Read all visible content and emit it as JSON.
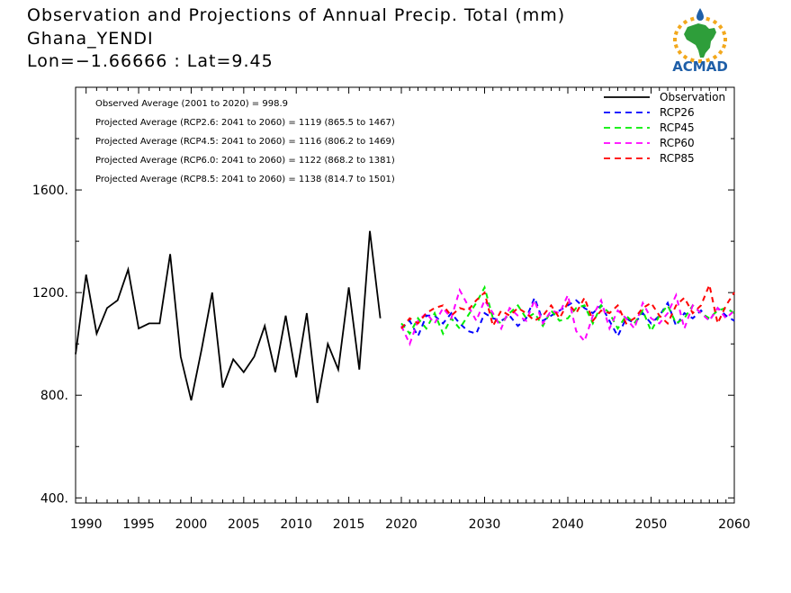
{
  "header": {
    "title": "Observation and Projections of Annual Precip. Total (mm)",
    "location": "Ghana_YENDI",
    "coords": "Lon=−1.66666 : Lat=9.45"
  },
  "logo": {
    "text": "ACMAD",
    "icon": "africa-map-sun-drop"
  },
  "colors": {
    "observation": "#000000",
    "rcp26": "#0000ff",
    "rcp45": "#00ee00",
    "rcp60": "#ff00ff",
    "rcp85": "#ff0000",
    "logo_text": "#1f5fa8",
    "logo_africa": "#2e9e3a",
    "logo_sun": "#f2a81d"
  },
  "chart_data": {
    "type": "line",
    "xlim": [
      1989,
      2060
    ],
    "ylim": [
      380,
      2000
    ],
    "x_ticks": [
      1990,
      1995,
      2000,
      2005,
      2010,
      2015,
      2020,
      2030,
      2040,
      2050,
      2060
    ],
    "y_ticks": [
      400,
      800,
      1200,
      1600
    ],
    "x_tick_labels": [
      "1990",
      "1995",
      "2000",
      "2005",
      "2010",
      "2015",
      "2020",
      "2030",
      "2040",
      "2050",
      "2060"
    ],
    "y_tick_labels": [
      "400.",
      "800.",
      "1200.",
      "1600."
    ],
    "annotations": [
      "Observed Average (2001 to 2020) = 998.9",
      "Projected Average (RCP2.6: 2041 to 2060) = 1119 (865.5 to 1467)",
      "Projected Average (RCP4.5: 2041 to 2060) = 1116 (806.2 to 1469)",
      "Projected Average (RCP6.0: 2041 to 2060) = 1122 (868.2 to 1381)",
      "Projected Average (RCP8.5: 2041 to 2060) = 1138 (814.7 to 1501)"
    ],
    "legend": [
      "Observation",
      "RCP26",
      "RCP45",
      "RCP60",
      "RCP85"
    ],
    "legend_position": "top-right",
    "series": [
      {
        "name": "Observation",
        "style": "solid",
        "x": [
          1989,
          1990,
          1991,
          1992,
          1993,
          1994,
          1995,
          1996,
          1997,
          1998,
          1999,
          2000,
          2001,
          2002,
          2003,
          2004,
          2005,
          2006,
          2007,
          2008,
          2009,
          2010,
          2011,
          2012,
          2013,
          2014,
          2015,
          2016,
          2017,
          2018,
          2019,
          2020
        ],
        "y": [
          960,
          1270,
          1040,
          1140,
          1170,
          1290,
          1060,
          1080,
          1080,
          1350,
          950,
          780,
          980,
          1200,
          830,
          940,
          890,
          950,
          1070,
          890,
          1110,
          870,
          1120,
          770,
          1000,
          900,
          1220,
          900,
          1440,
          1100,
          null,
          null
        ]
      },
      {
        "name": "RCP26",
        "style": "dashed",
        "x": [
          2020,
          2021,
          2022,
          2023,
          2024,
          2025,
          2026,
          2027,
          2028,
          2029,
          2030,
          2031,
          2032,
          2033,
          2034,
          2035,
          2036,
          2037,
          2038,
          2039,
          2040,
          2041,
          2042,
          2043,
          2044,
          2045,
          2046,
          2047,
          2048,
          2049,
          2050,
          2051,
          2052,
          2053,
          2054,
          2055,
          2056,
          2057,
          2058,
          2059,
          2060
        ],
        "y": [
          1060,
          1090,
          1030,
          1110,
          1110,
          1080,
          1120,
          1080,
          1050,
          1040,
          1120,
          1100,
          1090,
          1110,
          1070,
          1100,
          1180,
          1090,
          1110,
          1130,
          1150,
          1170,
          1140,
          1120,
          1150,
          1090,
          1030,
          1100,
          1080,
          1120,
          1080,
          1110,
          1160,
          1070,
          1120,
          1100,
          1130,
          1090,
          1140,
          1110,
          1090
        ]
      },
      {
        "name": "RCP45",
        "style": "dashed",
        "x": [
          2020,
          2021,
          2022,
          2023,
          2024,
          2025,
          2026,
          2027,
          2028,
          2029,
          2030,
          2031,
          2032,
          2033,
          2034,
          2035,
          2036,
          2037,
          2038,
          2039,
          2040,
          2041,
          2042,
          2043,
          2044,
          2045,
          2046,
          2047,
          2048,
          2049,
          2050,
          2051,
          2052,
          2053,
          2054,
          2055,
          2056,
          2057,
          2058,
          2059,
          2060
        ],
        "y": [
          1080,
          1040,
          1100,
          1060,
          1120,
          1040,
          1100,
          1060,
          1110,
          1160,
          1220,
          1100,
          1080,
          1120,
          1150,
          1100,
          1120,
          1070,
          1130,
          1090,
          1100,
          1140,
          1150,
          1080,
          1150,
          1120,
          1060,
          1110,
          1080,
          1130,
          1050,
          1110,
          1150,
          1080,
          1100,
          1150,
          1120,
          1100,
          1130,
          1140,
          1120
        ]
      },
      {
        "name": "RCP60",
        "style": "dashed",
        "x": [
          2020,
          2021,
          2022,
          2023,
          2024,
          2025,
          2026,
          2027,
          2028,
          2029,
          2030,
          2031,
          2032,
          2033,
          2034,
          2035,
          2036,
          2037,
          2038,
          2039,
          2040,
          2041,
          2042,
          2043,
          2044,
          2045,
          2046,
          2047,
          2048,
          2049,
          2050,
          2051,
          2052,
          2053,
          2054,
          2055,
          2056,
          2057,
          2058,
          2059,
          2060
        ],
        "y": [
          1070,
          1000,
          1090,
          1120,
          1080,
          1140,
          1100,
          1210,
          1150,
          1090,
          1170,
          1120,
          1060,
          1140,
          1110,
          1090,
          1170,
          1080,
          1130,
          1120,
          1190,
          1050,
          1010,
          1110,
          1170,
          1060,
          1130,
          1100,
          1060,
          1160,
          1100,
          1080,
          1120,
          1190,
          1060,
          1150,
          1120,
          1090,
          1140,
          1100,
          1130
        ]
      },
      {
        "name": "RCP85",
        "style": "dashed",
        "x": [
          2020,
          2021,
          2022,
          2023,
          2024,
          2025,
          2026,
          2027,
          2028,
          2029,
          2030,
          2031,
          2032,
          2033,
          2034,
          2035,
          2036,
          2037,
          2038,
          2039,
          2040,
          2041,
          2042,
          2043,
          2044,
          2045,
          2046,
          2047,
          2048,
          2049,
          2050,
          2051,
          2052,
          2053,
          2054,
          2055,
          2056,
          2057,
          2058,
          2059,
          2060
        ],
        "y": [
          1060,
          1100,
          1080,
          1120,
          1140,
          1150,
          1110,
          1140,
          1130,
          1170,
          1200,
          1070,
          1130,
          1110,
          1140,
          1120,
          1090,
          1110,
          1150,
          1100,
          1160,
          1120,
          1180,
          1090,
          1130,
          1120,
          1150,
          1080,
          1100,
          1140,
          1160,
          1110,
          1080,
          1150,
          1180,
          1120,
          1150,
          1230,
          1080,
          1150,
          1200
        ]
      }
    ]
  }
}
